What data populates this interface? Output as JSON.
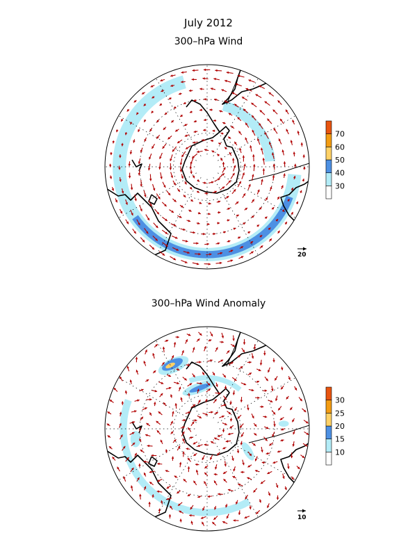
{
  "header": {
    "title": "July 2012"
  },
  "maps": [
    {
      "title": "300–hPa Wind",
      "colorbar": {
        "levels": [
          "30",
          "40",
          "50",
          "60",
          "70"
        ],
        "colors": [
          "#ffffff",
          "#b3ecf7",
          "#4d90e3",
          "#ffd166",
          "#f39c12",
          "#e8540f"
        ]
      },
      "reference_vector_label": "20",
      "shading": [
        {
          "color": "#b3ecf7",
          "kind": "ring",
          "rot": 0,
          "r": 0.86,
          "w": 0.13,
          "from": 95,
          "to": 345
        },
        {
          "color": "#b3ecf7",
          "kind": "ring",
          "rot": 0,
          "r": 0.62,
          "w": 0.1,
          "from": 15,
          "to": 85
        },
        {
          "color": "#4d90e3",
          "kind": "ring",
          "rot": 0,
          "r": 0.86,
          "w": 0.07,
          "from": 110,
          "to": 235
        }
      ]
    },
    {
      "title": "300–hPa Wind Anomaly",
      "colorbar": {
        "levels": [
          "10",
          "15",
          "20",
          "25",
          "30"
        ],
        "colors": [
          "#ffffff",
          "#b3ecf7",
          "#4d90e3",
          "#ffd166",
          "#f39c12",
          "#e8540f"
        ]
      },
      "reference_vector_label": "10",
      "shading": [
        {
          "color": "#b3ecf7",
          "kind": "ring",
          "rot": 0,
          "r": 0.82,
          "w": 0.07,
          "from": 150,
          "to": 290
        },
        {
          "color": "#b3ecf7",
          "kind": "blob",
          "dx": -0.33,
          "dy": -0.62,
          "rx": 0.16,
          "ry": 0.07,
          "rot": -25
        },
        {
          "color": "#4d90e3",
          "kind": "blob",
          "dx": -0.34,
          "dy": -0.63,
          "rx": 0.11,
          "ry": 0.045,
          "rot": -25
        },
        {
          "color": "#ffd166",
          "kind": "blob",
          "dx": -0.36,
          "dy": -0.62,
          "rx": 0.05,
          "ry": 0.02,
          "rot": -25
        },
        {
          "color": "#b3ecf7",
          "kind": "blob",
          "dx": -0.08,
          "dy": -0.4,
          "rx": 0.17,
          "ry": 0.05,
          "rot": -20
        },
        {
          "color": "#4d90e3",
          "kind": "blob",
          "dx": -0.07,
          "dy": -0.4,
          "rx": 0.11,
          "ry": 0.025,
          "rot": -20
        },
        {
          "color": "#b3ecf7",
          "kind": "ring",
          "rot": 0,
          "r": 0.5,
          "w": 0.05,
          "from": 340,
          "to": 40
        },
        {
          "color": "#b3ecf7",
          "kind": "blob",
          "dx": 0.4,
          "dy": 0.22,
          "rx": 0.1,
          "ry": 0.04,
          "rot": 60
        },
        {
          "color": "#b3ecf7",
          "kind": "blob",
          "dx": 0.75,
          "dy": -0.05,
          "rx": 0.05,
          "ry": 0.03,
          "rot": 0
        },
        {
          "color": "#b3ecf7",
          "kind": "blob",
          "dx": -0.7,
          "dy": 0.1,
          "rx": 0.05,
          "ry": 0.08,
          "rot": 0
        }
      ]
    }
  ]
}
